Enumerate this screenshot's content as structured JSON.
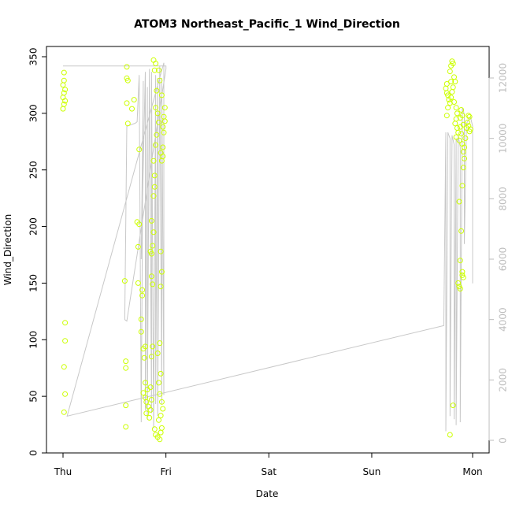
{
  "chart_data": {
    "type": "scatter",
    "title": "ATOM3 Northeast_Pacific_1 Wind_Direction",
    "xlabel": "Date",
    "ylabel": "Wind_Direction",
    "x_ticks": [
      "Thu",
      "Fri",
      "Sat",
      "Sun",
      "Mon"
    ],
    "x_unit": "days since Thursday 00:00",
    "xlim": [
      -0.2,
      4.1
    ],
    "ylim": [
      0,
      350
    ],
    "y_ticks": [
      0,
      50,
      100,
      150,
      200,
      250,
      300,
      350
    ],
    "y2lim": [
      0,
      12800
    ],
    "y2_ticks": [
      0,
      2000,
      4000,
      6000,
      8000,
      10000,
      12000
    ],
    "grid": false,
    "series": [
      {
        "color": "#ccff00",
        "marker": "open-circle",
        "points": [
          [
            0.01,
            336
          ],
          [
            0.01,
            329
          ],
          [
            0.0,
            325
          ],
          [
            0.02,
            321
          ],
          [
            0.01,
            318
          ],
          [
            0.0,
            314
          ],
          [
            0.02,
            311
          ],
          [
            0.01,
            308
          ],
          [
            0.0,
            304
          ],
          [
            0.02,
            115
          ],
          [
            0.02,
            99
          ],
          [
            0.01,
            76
          ],
          [
            0.02,
            52
          ],
          [
            0.01,
            36
          ],
          [
            0.6,
            152
          ],
          [
            0.61,
            81
          ],
          [
            0.61,
            75
          ],
          [
            0.61,
            42
          ],
          [
            0.61,
            23
          ],
          [
            0.62,
            341
          ],
          [
            0.62,
            331
          ],
          [
            0.63,
            329
          ],
          [
            0.62,
            309
          ],
          [
            0.63,
            291
          ],
          [
            0.67,
            304
          ],
          [
            0.69,
            312
          ],
          [
            0.72,
            204
          ],
          [
            0.73,
            182
          ],
          [
            0.73,
            150
          ],
          [
            0.74,
            202
          ],
          [
            0.74,
            268
          ],
          [
            0.76,
            118
          ],
          [
            0.76,
            107
          ],
          [
            0.77,
            144
          ],
          [
            0.77,
            139
          ],
          [
            0.78,
            92
          ],
          [
            0.79,
            84
          ],
          [
            0.8,
            94
          ],
          [
            0.8,
            62
          ],
          [
            0.82,
            56
          ],
          [
            0.78,
            53
          ],
          [
            0.8,
            49
          ],
          [
            0.81,
            45
          ],
          [
            0.83,
            41
          ],
          [
            0.85,
            38
          ],
          [
            0.81,
            35
          ],
          [
            0.84,
            31
          ],
          [
            0.85,
            58
          ],
          [
            0.86,
            47
          ],
          [
            0.87,
            94
          ],
          [
            0.86,
            85
          ],
          [
            0.85,
            178
          ],
          [
            0.86,
            176
          ],
          [
            0.87,
            183
          ],
          [
            0.86,
            156
          ],
          [
            0.87,
            149
          ],
          [
            0.88,
            195
          ],
          [
            0.86,
            205
          ],
          [
            0.88,
            227
          ],
          [
            0.89,
            235
          ],
          [
            0.89,
            245
          ],
          [
            0.88,
            258
          ],
          [
            0.9,
            272
          ],
          [
            0.91,
            281
          ],
          [
            0.93,
            292
          ],
          [
            0.92,
            300
          ],
          [
            0.9,
            305
          ],
          [
            0.91,
            320
          ],
          [
            0.89,
            338
          ],
          [
            0.88,
            347
          ],
          [
            0.9,
            344
          ],
          [
            0.89,
            21
          ],
          [
            0.9,
            16
          ],
          [
            0.92,
            14
          ],
          [
            0.94,
            12
          ],
          [
            0.95,
            18
          ],
          [
            0.96,
            22
          ],
          [
            0.93,
            29
          ],
          [
            0.95,
            33
          ],
          [
            0.97,
            39
          ],
          [
            0.96,
            45
          ],
          [
            0.94,
            52
          ],
          [
            0.93,
            62
          ],
          [
            0.95,
            70
          ],
          [
            0.92,
            88
          ],
          [
            0.94,
            97
          ],
          [
            0.95,
            147
          ],
          [
            0.96,
            160
          ],
          [
            0.95,
            178
          ],
          [
            0.96,
            258
          ],
          [
            0.97,
            262
          ],
          [
            0.95,
            265
          ],
          [
            0.97,
            270
          ],
          [
            0.98,
            283
          ],
          [
            0.97,
            288
          ],
          [
            0.99,
            293
          ],
          [
            0.98,
            297
          ],
          [
            0.99,
            305
          ],
          [
            0.96,
            316
          ],
          [
            0.94,
            329
          ],
          [
            0.93,
            338
          ],
          [
            3.73,
            326
          ],
          [
            3.72,
            322
          ],
          [
            3.73,
            318
          ],
          [
            3.74,
            316
          ],
          [
            3.75,
            312
          ],
          [
            3.76,
            309
          ],
          [
            3.74,
            305
          ],
          [
            3.73,
            298
          ],
          [
            3.77,
            314
          ],
          [
            3.78,
            319
          ],
          [
            3.79,
            323
          ],
          [
            3.77,
            328
          ],
          [
            3.76,
            337
          ],
          [
            3.77,
            342
          ],
          [
            3.78,
            346
          ],
          [
            3.79,
            344
          ],
          [
            3.8,
            332
          ],
          [
            3.81,
            328
          ],
          [
            3.8,
            310
          ],
          [
            3.82,
            305
          ],
          [
            3.83,
            300
          ],
          [
            3.82,
            295
          ],
          [
            3.81,
            291
          ],
          [
            3.83,
            287
          ],
          [
            3.84,
            283
          ],
          [
            3.82,
            279
          ],
          [
            3.85,
            276
          ],
          [
            3.86,
            288
          ],
          [
            3.86,
            296
          ],
          [
            3.87,
            303
          ],
          [
            3.88,
            298
          ],
          [
            3.89,
            290
          ],
          [
            3.87,
            282
          ],
          [
            3.88,
            273
          ],
          [
            3.89,
            266
          ],
          [
            3.9,
            270
          ],
          [
            3.91,
            278
          ],
          [
            3.92,
            287
          ],
          [
            3.93,
            292
          ],
          [
            3.94,
            289
          ],
          [
            3.95,
            284
          ],
          [
            3.96,
            286
          ],
          [
            3.94,
            298
          ],
          [
            3.95,
            297
          ],
          [
            3.9,
            260
          ],
          [
            3.89,
            252
          ],
          [
            3.88,
            236
          ],
          [
            3.87,
            196
          ],
          [
            3.86,
            170
          ],
          [
            3.88,
            160
          ],
          [
            3.88,
            157
          ],
          [
            3.89,
            155
          ],
          [
            3.84,
            150
          ],
          [
            3.85,
            147
          ],
          [
            3.86,
            145
          ],
          [
            3.85,
            222
          ],
          [
            3.79,
            42
          ],
          [
            3.76,
            16
          ]
        ]
      }
    ],
    "line_series": {
      "color": "#c8c8c8",
      "axis": "right",
      "x": [
        0.0,
        0.01,
        0.03,
        0.05,
        1.0,
        1.0,
        0.62,
        0.6,
        0.62,
        0.7,
        0.72,
        0.74,
        0.76,
        0.78,
        0.76,
        0.8,
        0.8,
        0.82,
        0.82,
        0.84,
        0.86,
        0.86,
        0.88,
        0.9,
        0.9,
        0.92,
        0.92,
        0.94,
        0.96,
        0.96,
        0.98,
        0.98,
        0.04,
        3.7,
        3.72,
        3.72,
        3.74,
        3.76,
        3.76,
        3.78,
        3.8,
        3.8,
        3.82,
        3.82,
        3.84,
        3.86,
        3.86,
        3.88,
        3.9,
        3.9,
        3.92,
        3.94,
        3.96,
        3.98,
        3.98
      ],
      "y": [
        12400,
        12400,
        12400,
        12400,
        12400,
        12300,
        3950,
        4000,
        10400,
        10500,
        10550,
        12100,
        600,
        11900,
        6000,
        12200,
        1000,
        11700,
        700,
        12300,
        900,
        12200,
        400,
        12100,
        1200,
        12000,
        800,
        12400,
        1200,
        12000,
        1500,
        12500,
        800,
        3800,
        10200,
        300,
        10200,
        10000,
        800,
        10100,
        9800,
        700,
        10000,
        500,
        10100,
        9700,
        600,
        11000,
        10800,
        6500,
        10500,
        10600,
        10700,
        10400,
        5200
      ]
    }
  }
}
